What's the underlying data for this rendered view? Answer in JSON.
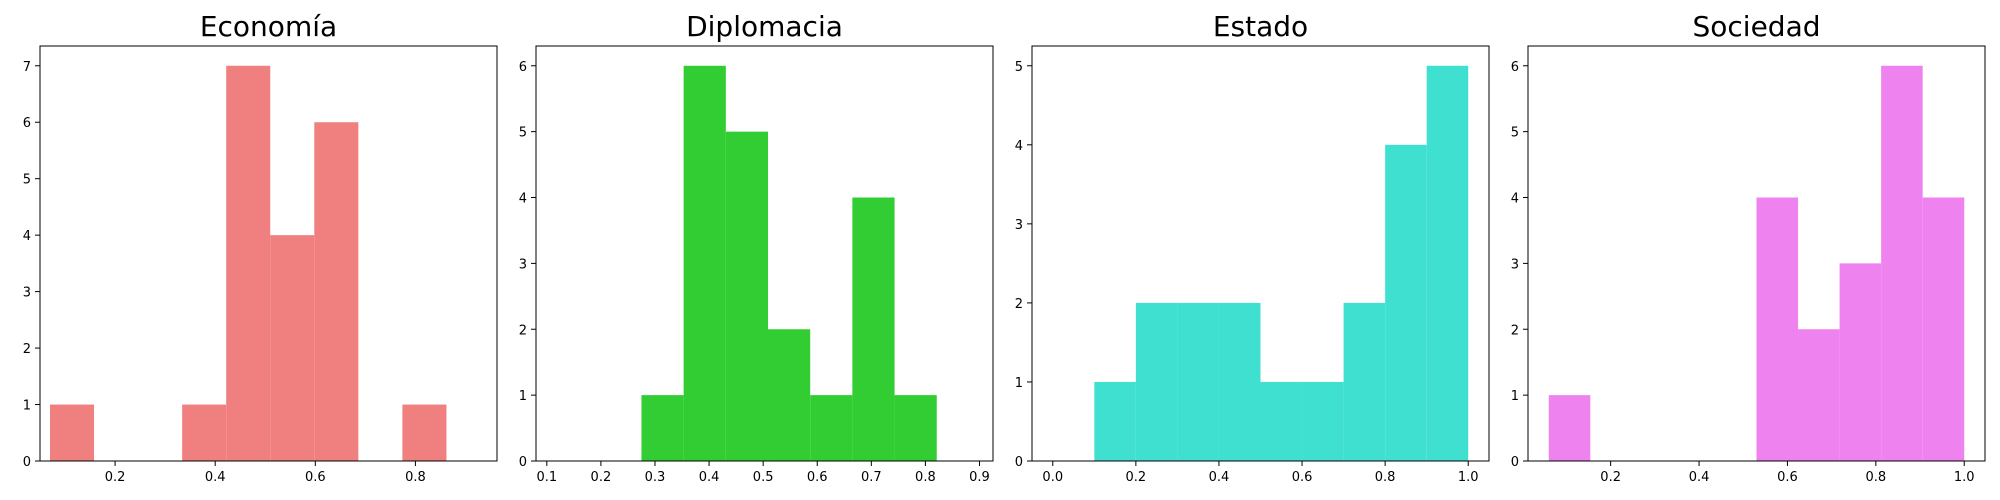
{
  "chart_data": [
    {
      "type": "bar",
      "title": "Economía",
      "color": "#f08080",
      "bin_edges": [
        0.07,
        0.158,
        0.246,
        0.334,
        0.422,
        0.51,
        0.598,
        0.686,
        0.774,
        0.862
      ],
      "values": [
        1,
        0,
        0,
        1,
        7,
        4,
        6,
        0,
        1
      ],
      "xlim": [
        0.05,
        0.963
      ],
      "ylim": [
        0,
        7.35
      ],
      "xticks": [
        0.2,
        0.4,
        0.6,
        0.8
      ],
      "xtick_labels": [
        "0.2",
        "0.4",
        "0.6",
        "0.8"
      ],
      "yticks": [
        0,
        1,
        2,
        3,
        4,
        5,
        6,
        7
      ],
      "ytick_labels": [
        "0",
        "1",
        "2",
        "3",
        "4",
        "5",
        "6",
        "7"
      ],
      "xlabel": "",
      "ylabel": "",
      "grid": false
    },
    {
      "type": "bar",
      "title": "Diplomacia",
      "color": "#32cd32",
      "bin_edges": [
        0.275,
        0.353,
        0.431,
        0.509,
        0.587,
        0.665,
        0.743,
        0.821
      ],
      "values": [
        1,
        6,
        5,
        2,
        1,
        4,
        1
      ],
      "xlim": [
        0.08,
        0.925
      ],
      "ylim": [
        0,
        6.3
      ],
      "xticks": [
        0.1,
        0.2,
        0.3,
        0.4,
        0.5,
        0.6,
        0.7,
        0.8,
        0.9
      ],
      "xtick_labels": [
        "0.1",
        "0.2",
        "0.3",
        "0.4",
        "0.5",
        "0.6",
        "0.7",
        "0.8",
        "0.9"
      ],
      "yticks": [
        0,
        1,
        2,
        3,
        4,
        5,
        6
      ],
      "ytick_labels": [
        "0",
        "1",
        "2",
        "3",
        "4",
        "5",
        "6"
      ],
      "xlabel": "",
      "ylabel": "",
      "grid": false
    },
    {
      "type": "bar",
      "title": "Estado",
      "color": "#40e0d0",
      "bin_edges": [
        0.0,
        0.1,
        0.2,
        0.3,
        0.4,
        0.5,
        0.6,
        0.7,
        0.8,
        0.9,
        1.0
      ],
      "values": [
        0,
        1,
        2,
        2,
        2,
        1,
        1,
        2,
        4,
        5
      ],
      "xlim": [
        -0.05,
        1.05
      ],
      "ylim": [
        0,
        5.25
      ],
      "xticks": [
        0.0,
        0.2,
        0.4,
        0.6,
        0.8,
        1.0
      ],
      "xtick_labels": [
        "0.0",
        "0.2",
        "0.4",
        "0.6",
        "0.8",
        "1.0"
      ],
      "yticks": [
        0,
        1,
        2,
        3,
        4,
        5
      ],
      "ytick_labels": [
        "0",
        "1",
        "2",
        "3",
        "4",
        "5"
      ],
      "xlabel": "",
      "ylabel": "",
      "grid": false
    },
    {
      "type": "bar",
      "title": "Sociedad",
      "color": "#ee82ee",
      "bin_edges": [
        0.06,
        0.154,
        0.248,
        0.342,
        0.436,
        0.53,
        0.624,
        0.718,
        0.812,
        0.906,
        1.0
      ],
      "values": [
        1,
        0,
        0,
        0,
        0,
        4,
        2,
        3,
        6,
        4
      ],
      "xlim": [
        0.013,
        1.047
      ],
      "ylim": [
        0,
        6.3
      ],
      "xticks": [
        0.2,
        0.4,
        0.6,
        0.8,
        1.0
      ],
      "xtick_labels": [
        "0.2",
        "0.4",
        "0.6",
        "0.8",
        "1.0"
      ],
      "yticks": [
        0,
        1,
        2,
        3,
        4,
        5,
        6
      ],
      "ytick_labels": [
        "0",
        "1",
        "2",
        "3",
        "4",
        "5",
        "6"
      ],
      "xlabel": "",
      "ylabel": "",
      "grid": false
    }
  ]
}
